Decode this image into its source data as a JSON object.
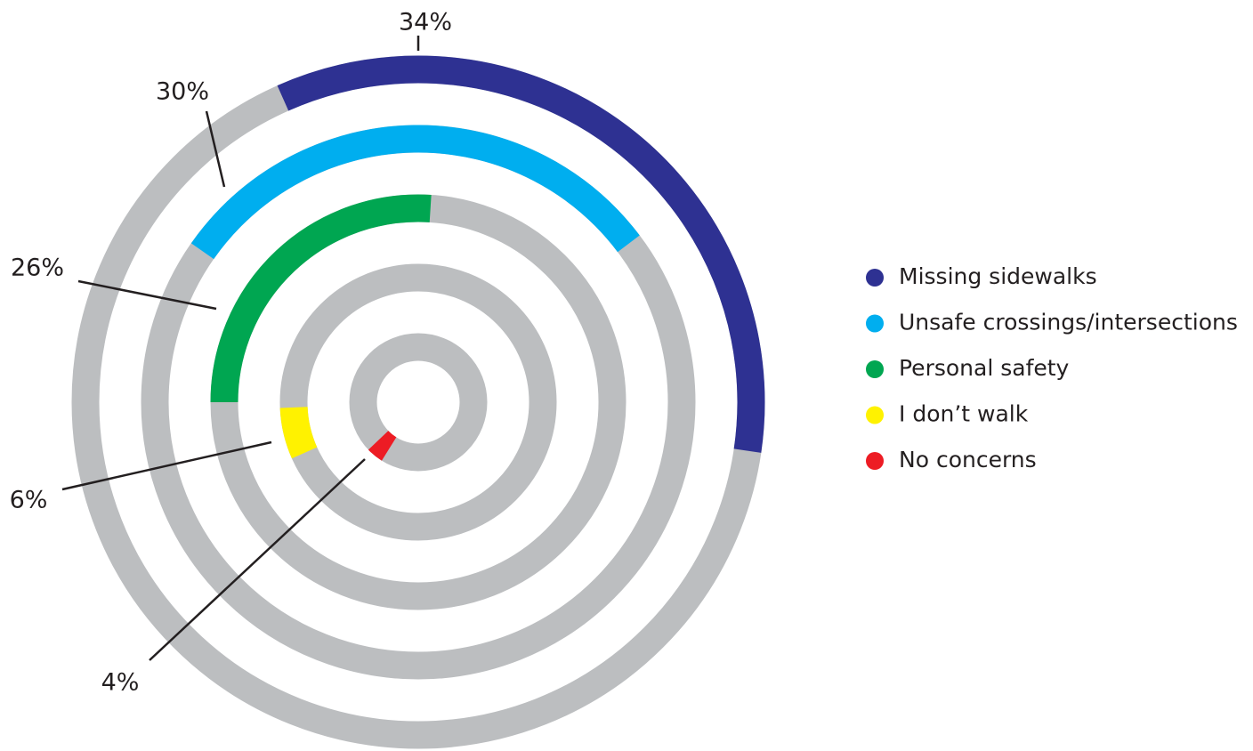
{
  "chart_data": {
    "type": "radial_bar",
    "categories": [
      "Missing sidewalks",
      "Unsafe crossings/intersections",
      "Personal safety",
      "I don’t walk",
      "No concerns"
    ],
    "values": [
      34,
      30,
      26,
      6,
      4
    ],
    "value_labels": [
      "34%",
      "30%",
      "26%",
      "6%",
      "4%"
    ],
    "colors": [
      "#2e3192",
      "#00aeef",
      "#00a651",
      "#fff200",
      "#ed1c24"
    ],
    "track_color": "#bcbec0",
    "legend": "right"
  }
}
